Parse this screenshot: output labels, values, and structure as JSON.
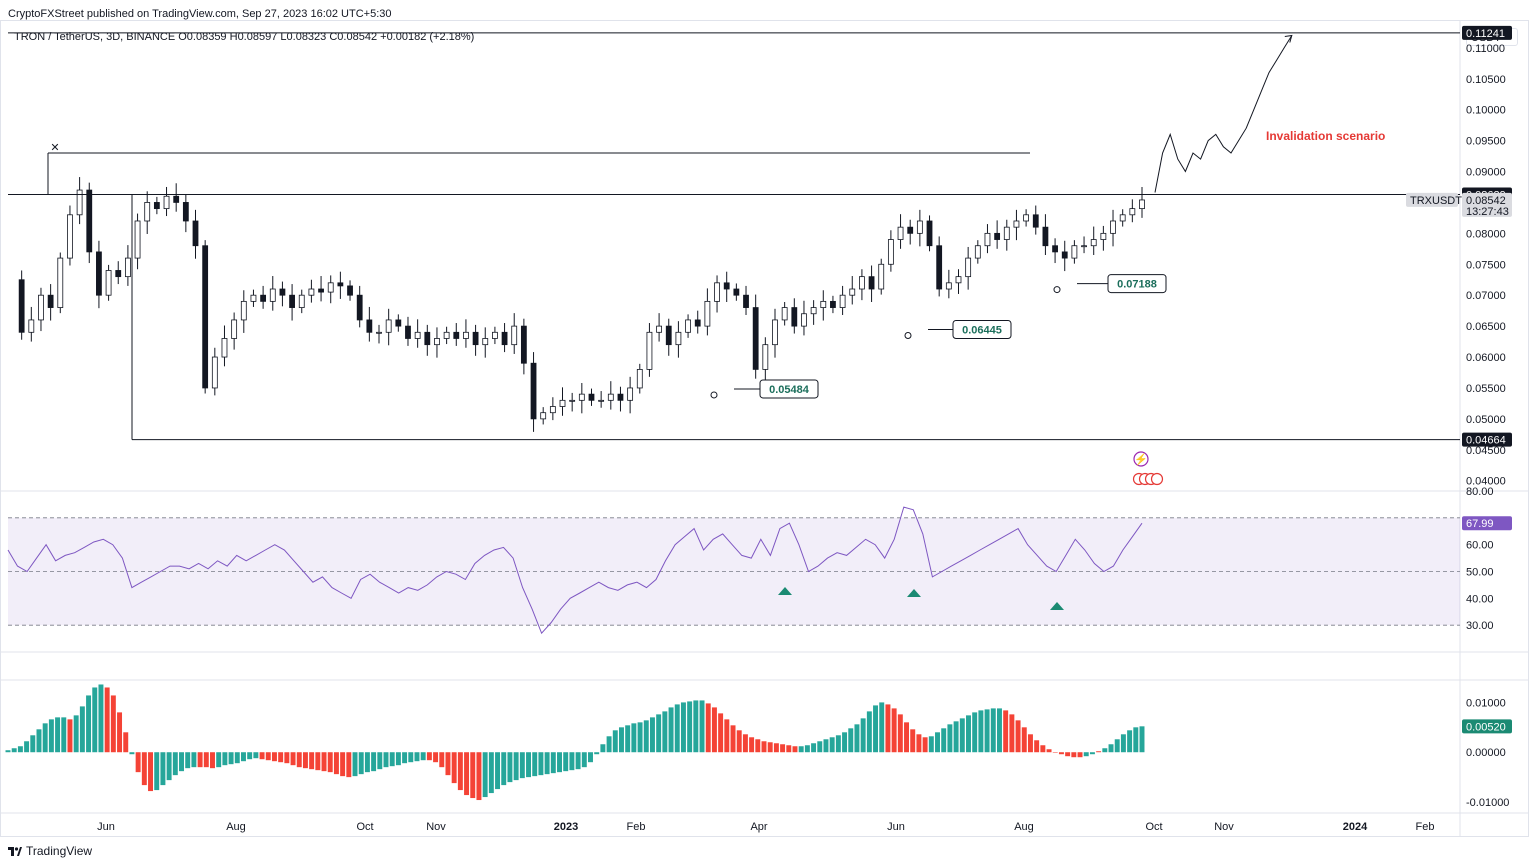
{
  "header": {
    "credit": "CryptoFXStreet published on TradingView.com, Sep 27, 2023 16:02 UTC+5:30",
    "symbol": "TRON / TetherUS, 3D, BINANCE",
    "open": "O0.08359",
    "high": "H0.08597",
    "low": "L0.08323",
    "close": "C0.08542",
    "change": "+0.00182 (+2.18%)",
    "currency": "USDT"
  },
  "brand": {
    "name": "TradingView"
  },
  "colors": {
    "up": "#ffffff",
    "down": "#131722",
    "green": "#26a69a",
    "red": "#f44336",
    "rsi": "#7e57c2",
    "annotation": "#e53935"
  },
  "chart_data": [
    {
      "type": "candlestick",
      "title": "TRON / TetherUS, 3D, BINANCE",
      "y_ticks": [
        "0.04000",
        "0.04500",
        "0.05000",
        "0.05500",
        "0.06000",
        "0.06500",
        "0.07000",
        "0.07500",
        "0.08000",
        "0.08500",
        "0.09000",
        "0.09500",
        "0.10000",
        "0.10500",
        "0.11000"
      ],
      "ylim": [
        0.0385,
        0.1145
      ],
      "x_ticks": [
        "Jun",
        "Aug",
        "Oct",
        "Nov",
        "2023",
        "Feb",
        "Apr",
        "Jun",
        "Aug",
        "Oct",
        "Nov",
        "2024",
        "Feb"
      ],
      "series_path": [
        0.0725,
        0.064,
        0.066,
        0.07,
        0.068,
        0.076,
        0.083,
        0.087,
        0.077,
        0.07,
        0.074,
        0.073,
        0.076,
        0.082,
        0.085,
        0.084,
        0.086,
        0.085,
        0.082,
        0.078,
        0.055,
        0.06,
        0.063,
        0.066,
        0.069,
        0.07,
        0.069,
        0.071,
        0.07,
        0.068,
        0.07,
        0.071,
        0.0705,
        0.072,
        0.0715,
        0.07,
        0.066,
        0.064,
        0.064,
        0.066,
        0.065,
        0.063,
        0.064,
        0.062,
        0.063,
        0.064,
        0.063,
        0.064,
        0.062,
        0.063,
        0.064,
        0.062,
        0.065,
        0.059,
        0.05,
        0.051,
        0.052,
        0.053,
        0.053,
        0.054,
        0.053,
        0.053,
        0.054,
        0.053,
        0.055,
        0.058,
        0.064,
        0.065,
        0.062,
        0.064,
        0.066,
        0.065,
        0.069,
        0.072,
        0.071,
        0.07,
        0.068,
        0.058,
        0.062,
        0.066,
        0.068,
        0.065,
        0.067,
        0.068,
        0.069,
        0.068,
        0.07,
        0.071,
        0.073,
        0.071,
        0.075,
        0.079,
        0.081,
        0.08,
        0.082,
        0.078,
        0.071,
        0.072,
        0.073,
        0.076,
        0.078,
        0.08,
        0.079,
        0.081,
        0.082,
        0.083,
        0.081,
        0.078,
        0.077,
        0.076,
        0.078,
        0.078,
        0.079,
        0.08,
        0.082,
        0.083,
        0.084,
        0.0854
      ],
      "last_price": "0.08542",
      "countdown": "13:27:43",
      "symbol_label": "TRXUSDT",
      "levels": [
        {
          "value": 0.11241,
          "label": "0.11241"
        },
        {
          "value": 0.08629,
          "label": "0.08629"
        },
        {
          "value": 0.04664,
          "label": "0.04664"
        },
        {
          "value": 0.093,
          "label": ""
        }
      ],
      "annotations": [
        {
          "text": "Invalidation scenario"
        },
        {
          "text": "0.05484",
          "value": 0.05484
        },
        {
          "text": "0.06445",
          "value": 0.06445
        },
        {
          "text": "0.07188",
          "value": 0.07188
        }
      ],
      "projection": [
        0.0866,
        0.093,
        0.096,
        0.092,
        0.09,
        0.093,
        0.092,
        0.095,
        0.096,
        0.094,
        0.093,
        0.095,
        0.097,
        0.1,
        0.103,
        0.106,
        0.108,
        0.11,
        0.112
      ]
    },
    {
      "type": "line",
      "name": "RSI",
      "y_ticks": [
        "30.00",
        "40.00",
        "50.00",
        "60.00",
        "70.00",
        "80.00"
      ],
      "ylim": [
        20,
        80
      ],
      "bands": [
        30,
        50,
        70
      ],
      "last": "67.99",
      "values": [
        58,
        52,
        50,
        55,
        60,
        54,
        56,
        57,
        59,
        61,
        62,
        60,
        55,
        44,
        46,
        48,
        50,
        52,
        52,
        51,
        53,
        51,
        54,
        52,
        56,
        54,
        56,
        58,
        60,
        58,
        54,
        50,
        46,
        48,
        44,
        42,
        40,
        47,
        49,
        46,
        44,
        42,
        44,
        43,
        45,
        48,
        50,
        49,
        47,
        53,
        56,
        58,
        59,
        55,
        44,
        36,
        27,
        31,
        36,
        40,
        42,
        44,
        46,
        44,
        43,
        45,
        46,
        44,
        47,
        54,
        60,
        63,
        66,
        58,
        62,
        64,
        60,
        56,
        55,
        62,
        56,
        66,
        68,
        60,
        50,
        52,
        55,
        57,
        56,
        59,
        62,
        60,
        55,
        62,
        74,
        73,
        64,
        48,
        50,
        52,
        54,
        56,
        58,
        60,
        62,
        64,
        66,
        60,
        56,
        52,
        50,
        56,
        62,
        58,
        53,
        50,
        52,
        58,
        63,
        68
      ]
    },
    {
      "type": "bar",
      "name": "Histogram",
      "y_ticks": [
        "-0.01000",
        "0.00000",
        "0.01000"
      ],
      "ylim": [
        -0.012,
        0.0145
      ],
      "last": "0.00520",
      "values": [
        0.0004,
        0.0008,
        0.0012,
        0.0022,
        0.0034,
        0.0046,
        0.0058,
        0.0066,
        0.007,
        0.007,
        0.0066,
        0.0074,
        0.0092,
        0.0114,
        0.013,
        0.0136,
        0.013,
        0.0114,
        0.008,
        0.004,
        -0.0004,
        -0.004,
        -0.0066,
        -0.0078,
        -0.0076,
        -0.0066,
        -0.0056,
        -0.0046,
        -0.0038,
        -0.0032,
        -0.003,
        -0.003,
        -0.003,
        -0.0032,
        -0.003,
        -0.0026,
        -0.0024,
        -0.0022,
        -0.0018,
        -0.0014,
        -0.0012,
        -0.0014,
        -0.0016,
        -0.0018,
        -0.002,
        -0.0022,
        -0.0026,
        -0.003,
        -0.0032,
        -0.0034,
        -0.0036,
        -0.0038,
        -0.004,
        -0.0044,
        -0.0048,
        -0.005,
        -0.0048,
        -0.0044,
        -0.004,
        -0.0038,
        -0.0034,
        -0.003,
        -0.0028,
        -0.0026,
        -0.0022,
        -0.002,
        -0.0018,
        -0.0016,
        -0.0016,
        -0.002,
        -0.003,
        -0.0046,
        -0.0062,
        -0.0076,
        -0.0086,
        -0.0092,
        -0.0096,
        -0.009,
        -0.0082,
        -0.0074,
        -0.0066,
        -0.006,
        -0.0056,
        -0.0052,
        -0.005,
        -0.0048,
        -0.0046,
        -0.0044,
        -0.0042,
        -0.004,
        -0.0038,
        -0.0036,
        -0.0034,
        -0.003,
        -0.002,
        -0.0004,
        0.0016,
        0.0032,
        0.0044,
        0.005,
        0.0054,
        0.0058,
        0.006,
        0.0064,
        0.007,
        0.0076,
        0.0082,
        0.009,
        0.0096,
        0.01,
        0.0102,
        0.0104,
        0.0104,
        0.0098,
        0.009,
        0.0078,
        0.0066,
        0.0054,
        0.0044,
        0.0036,
        0.003,
        0.0026,
        0.0022,
        0.002,
        0.0018,
        0.0016,
        0.0014,
        0.0012,
        0.0012,
        0.0014,
        0.0018,
        0.0022,
        0.0026,
        0.003,
        0.0034,
        0.004,
        0.0048,
        0.0056,
        0.0068,
        0.0082,
        0.0094,
        0.01,
        0.0096,
        0.0088,
        0.0076,
        0.006,
        0.0046,
        0.0036,
        0.003,
        0.0032,
        0.004,
        0.0048,
        0.0056,
        0.0062,
        0.0068,
        0.0074,
        0.008,
        0.0084,
        0.0086,
        0.0088,
        0.0088,
        0.0084,
        0.0076,
        0.0064,
        0.005,
        0.0036,
        0.0024,
        0.0014,
        0.0006,
        0.0,
        -0.0004,
        -0.0008,
        -0.001,
        -0.001,
        -0.0008,
        -0.0004,
        0.0002,
        0.0008,
        0.0016,
        0.0026,
        0.0036,
        0.0044,
        0.005,
        0.0052
      ]
    }
  ]
}
